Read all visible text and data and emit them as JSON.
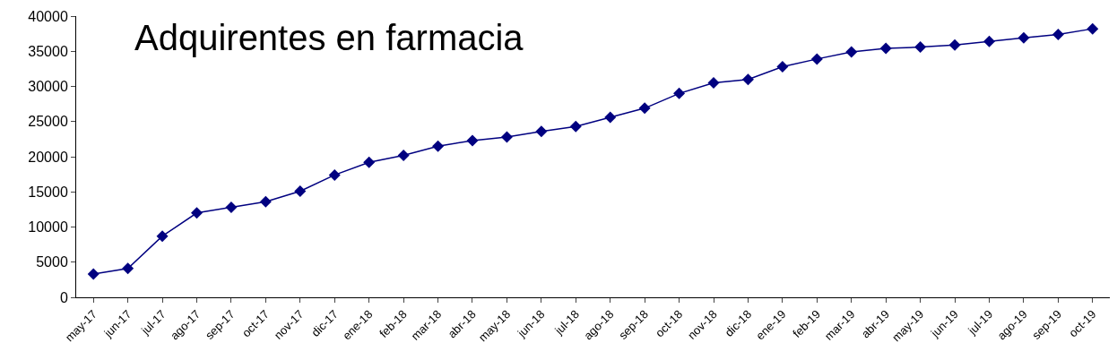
{
  "chart_data": {
    "type": "line",
    "title": "Adquirentes en farmacia",
    "categories": [
      "may-17",
      "jun-17",
      "jul-17",
      "ago-17",
      "sep-17",
      "oct-17",
      "nov-17",
      "dic-17",
      "ene-18",
      "feb-18",
      "mar-18",
      "abr-18",
      "may-18",
      "jun-18",
      "jul-18",
      "ago-18",
      "sep-18",
      "oct-18",
      "nov-18",
      "dic-18",
      "ene-19",
      "feb-19",
      "mar-19",
      "abr-19",
      "may-19",
      "jun-19",
      "jul-19",
      "ago-19",
      "sep-19",
      "oct-19"
    ],
    "series": [
      {
        "color": "#000080",
        "values": [
          3300,
          4100,
          8700,
          12000,
          12800,
          13600,
          15100,
          17400,
          19200,
          20200,
          21500,
          22300,
          22800,
          23600,
          24300,
          25600,
          26900,
          29000,
          30500,
          31000,
          32800,
          33900,
          34900,
          35400,
          35600,
          35900,
          36400,
          36900,
          37400,
          38200
        ]
      }
    ],
    "ylim": [
      0,
      40000
    ],
    "yticks": [
      0,
      5000,
      10000,
      15000,
      20000,
      25000,
      30000,
      35000,
      40000
    ],
    "grid": false,
    "legend": false,
    "marker": "diamond",
    "line_style": "solid"
  }
}
